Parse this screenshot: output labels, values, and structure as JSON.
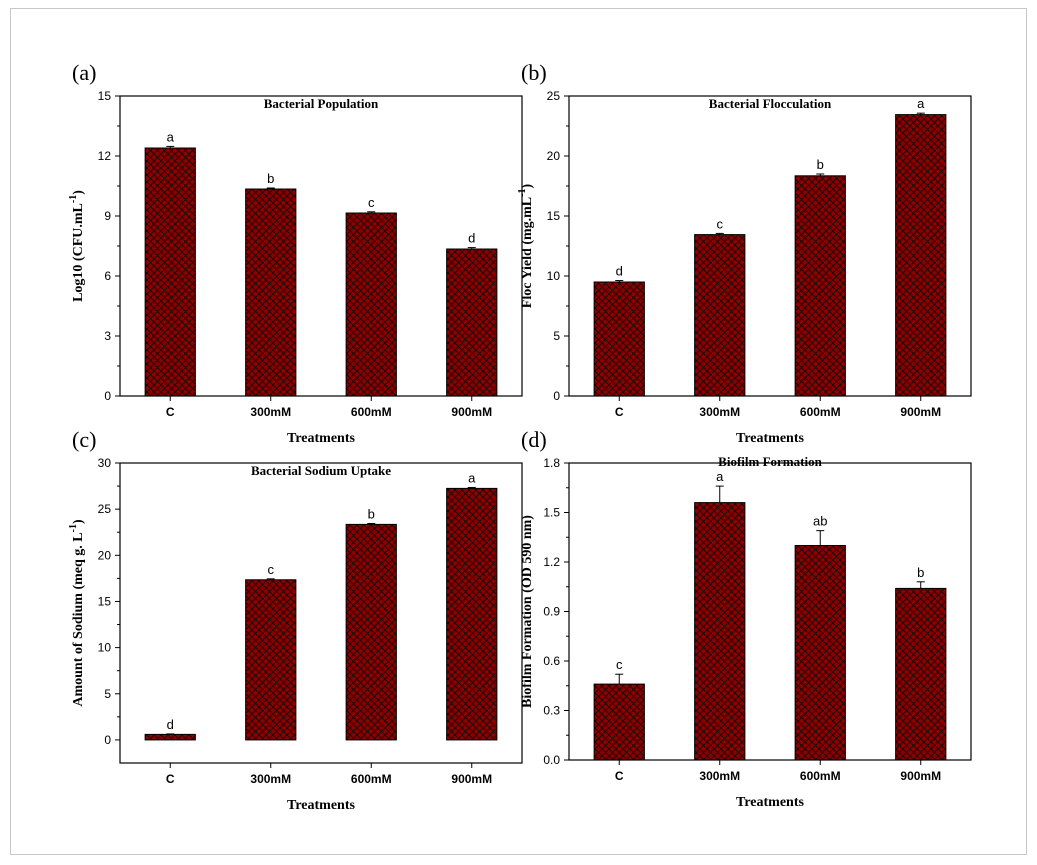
{
  "colors": {
    "bar_fill": "#8b0000",
    "hatch": "#1a0000",
    "axis": "#000000"
  },
  "chart_data": [
    {
      "type": "bar",
      "panel_label": "(a)",
      "title": "Bacterial Population",
      "xlabel": "Treatments",
      "ylabel": "Log10 (CFU.mL",
      "ylabel_sup": "-1",
      "ylabel_suffix": ")",
      "categories": [
        "C",
        "300mM",
        "600mM",
        "900mM"
      ],
      "values": [
        12.4,
        10.35,
        9.15,
        7.35
      ],
      "errors": [
        0.08,
        0.05,
        0.06,
        0.07
      ],
      "letters": [
        "a",
        "b",
        "c",
        "d"
      ],
      "ylim": [
        0,
        15
      ],
      "yticks": [
        "0",
        "3",
        "6",
        "9",
        "12",
        "15"
      ]
    },
    {
      "type": "bar",
      "panel_label": "(b)",
      "title": "Bacterial Flocculation",
      "xlabel": "Treatments",
      "ylabel": "Floc Yield (mg.mL",
      "ylabel_sup": "-1",
      "ylabel_suffix": ")",
      "categories": [
        "C",
        "300mM",
        "600mM",
        "900mM"
      ],
      "values": [
        9.5,
        13.45,
        18.35,
        23.45
      ],
      "errors": [
        0.12,
        0.1,
        0.15,
        0.12
      ],
      "letters": [
        "d",
        "c",
        "b",
        "a"
      ],
      "ylim": [
        0,
        25
      ],
      "yticks": [
        "0",
        "5",
        "10",
        "15",
        "20",
        "25"
      ]
    },
    {
      "type": "bar",
      "panel_label": "(c)",
      "title": "Bacterial Sodium Uptake",
      "xlabel": "Treatments",
      "ylabel": "Amount of Sodium (meq g. L",
      "ylabel_sup": "-1",
      "ylabel_suffix": ")",
      "categories": [
        "C",
        "300mM",
        "600mM",
        "900mM"
      ],
      "values": [
        0.6,
        17.35,
        23.35,
        27.25
      ],
      "errors": [
        0.05,
        0.1,
        0.1,
        0.1
      ],
      "letters": [
        "d",
        "c",
        "b",
        "a"
      ],
      "ylim": [
        -2.5,
        30
      ],
      "yticks": [
        "0",
        "5",
        "10",
        "15",
        "20",
        "25",
        "30"
      ]
    },
    {
      "type": "bar",
      "panel_label": "(d)",
      "title": "Biofilm Formation",
      "xlabel": "Treatments",
      "ylabel": "Biofilm Formation (OD 590 nm)",
      "ylabel_sup": "",
      "ylabel_suffix": "",
      "categories": [
        "C",
        "300mM",
        "600mM",
        "900mM"
      ],
      "values": [
        0.46,
        1.56,
        1.3,
        1.04
      ],
      "errors": [
        0.06,
        0.1,
        0.09,
        0.04
      ],
      "letters": [
        "c",
        "a",
        "ab",
        "b"
      ],
      "ylim": [
        0,
        1.8
      ],
      "yticks": [
        "0.0",
        "0.3",
        "0.6",
        "0.9",
        "1.2",
        "1.5",
        "1.8"
      ]
    }
  ]
}
